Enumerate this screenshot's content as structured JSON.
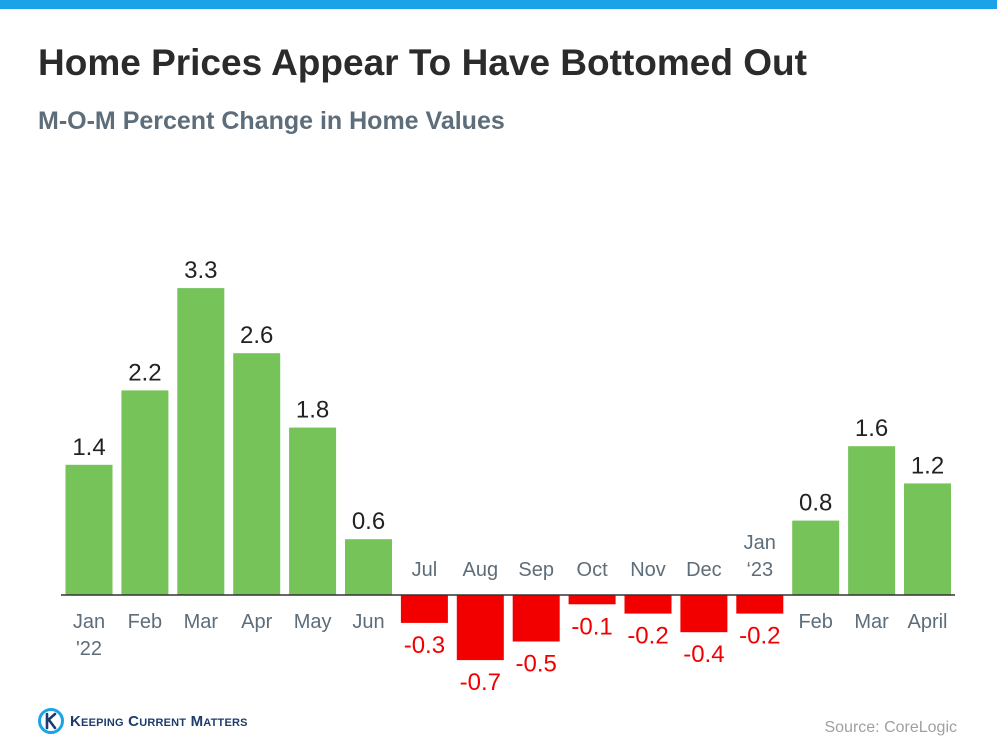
{
  "title": "Home Prices Appear To Have Bottomed Out",
  "subtitle": "M-O-M Percent Change in Home Values",
  "footer": {
    "logo_text": "Keeping Current Matters",
    "source": "Source: CoreLogic"
  },
  "colors": {
    "positive": "#76c35a",
    "negative": "#f20000",
    "top_bar": "#1aa3e8",
    "logo_blue": "#1d3c6e"
  },
  "chart_data": {
    "type": "bar",
    "categories": [
      [
        "Jan",
        "'22"
      ],
      [
        "Feb"
      ],
      [
        "Mar"
      ],
      [
        "Apr"
      ],
      [
        "May"
      ],
      [
        "Jun"
      ],
      [
        "Jul"
      ],
      [
        "Aug"
      ],
      [
        "Sep"
      ],
      [
        "Oct"
      ],
      [
        "Nov"
      ],
      [
        "Dec"
      ],
      [
        "Jan",
        "‘23"
      ],
      [
        "Feb"
      ],
      [
        "Mar"
      ],
      [
        "April"
      ]
    ],
    "values": [
      1.4,
      2.2,
      3.3,
      2.6,
      1.8,
      0.6,
      -0.3,
      -0.7,
      -0.5,
      -0.1,
      -0.2,
      -0.4,
      -0.2,
      0.8,
      1.6,
      1.2
    ],
    "data_labels": [
      "1.4",
      "2.2",
      "3.3",
      "2.6",
      "1.8",
      "0.6",
      "-0.3",
      "-0.7",
      "-0.5",
      "-0.1",
      "-0.2",
      "-0.4",
      "-0.2",
      "0.8",
      "1.6",
      "1.2"
    ],
    "grid": false,
    "legend": "none"
  }
}
